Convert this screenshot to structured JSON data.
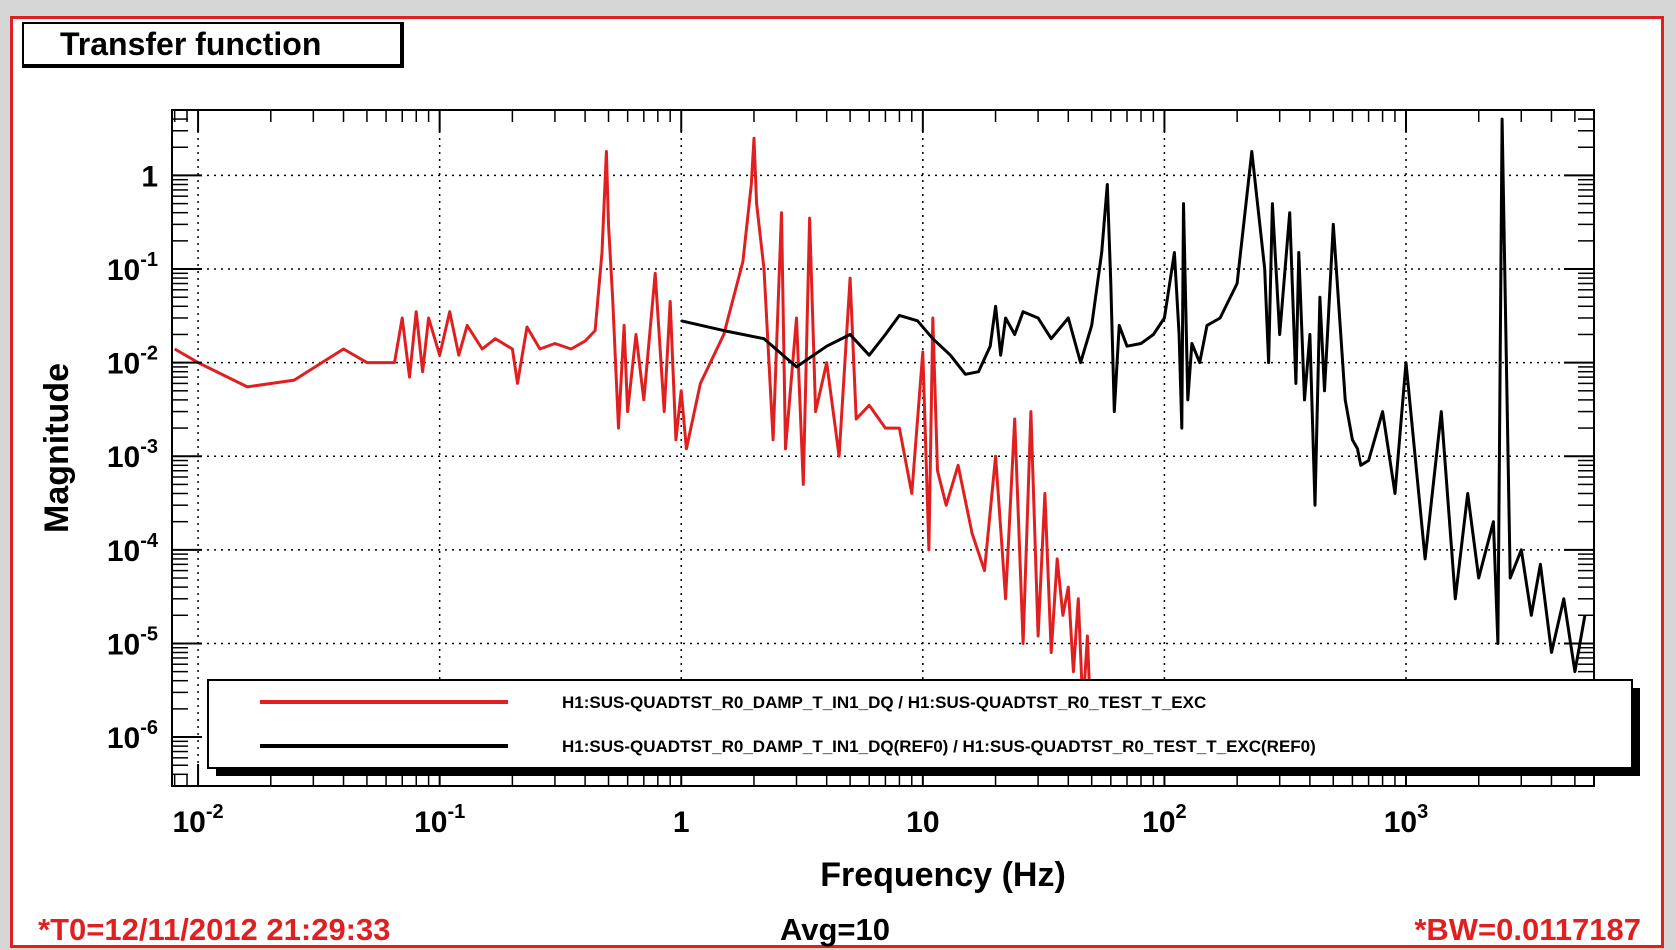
{
  "panel_title": "Transfer function",
  "footer": {
    "t0": "*T0=12/11/2012 21:29:33",
    "avg": "Avg=10",
    "bw": "*BW=0.0117187"
  },
  "colors": {
    "accent": "#e02020",
    "series_live": "#e02020",
    "series_ref": "#000000"
  },
  "chart_data": {
    "type": "line",
    "title": "Transfer function",
    "xlabel": "Frequency (Hz)",
    "ylabel": "Magnitude",
    "xscale": "log",
    "yscale": "log",
    "xlim": [
      0.0078,
      6000
    ],
    "ylim": [
      3e-07,
      5
    ],
    "grid": true,
    "legend": "bottom",
    "x_ticks": [
      {
        "base": "10",
        "exp": "-2",
        "value": 0.01
      },
      {
        "base": "10",
        "exp": "-1",
        "value": 0.1
      },
      {
        "base": "1",
        "exp": "",
        "value": 1
      },
      {
        "base": "10",
        "exp": "",
        "value": 10
      },
      {
        "base": "10",
        "exp": "2",
        "value": 100
      },
      {
        "base": "10",
        "exp": "3",
        "value": 1000
      }
    ],
    "y_ticks": [
      {
        "base": "1",
        "exp": "",
        "value": 1
      },
      {
        "base": "10",
        "exp": "-1",
        "value": 0.1
      },
      {
        "base": "10",
        "exp": "-2",
        "value": 0.01
      },
      {
        "base": "10",
        "exp": "-3",
        "value": 0.001
      },
      {
        "base": "10",
        "exp": "-4",
        "value": 0.0001
      },
      {
        "base": "10",
        "exp": "-5",
        "value": 1e-05
      },
      {
        "base": "10",
        "exp": "-6",
        "value": 1e-06
      }
    ],
    "series": [
      {
        "name": "H1:SUS-QUADTST_R0_DAMP_T_IN1_DQ / H1:SUS-QUADTST_R0_TEST_T_EXC",
        "color": "#e02020",
        "x": [
          0.008,
          0.01,
          0.016,
          0.025,
          0.04,
          0.05,
          0.065,
          0.07,
          0.075,
          0.08,
          0.085,
          0.09,
          0.1,
          0.11,
          0.12,
          0.13,
          0.15,
          0.17,
          0.2,
          0.21,
          0.23,
          0.26,
          0.3,
          0.35,
          0.4,
          0.44,
          0.47,
          0.49,
          0.5,
          0.52,
          0.55,
          0.58,
          0.6,
          0.65,
          0.7,
          0.78,
          0.85,
          0.9,
          0.95,
          1.0,
          1.05,
          1.2,
          1.5,
          1.8,
          1.95,
          2.0,
          2.05,
          2.2,
          2.4,
          2.6,
          2.7,
          3.0,
          3.2,
          3.4,
          3.6,
          4.0,
          4.5,
          5.0,
          5.3,
          6.0,
          7.0,
          8.0,
          9.0,
          10.0,
          10.6,
          11.0,
          11.5,
          12.5,
          14.0,
          16.0,
          18.0,
          20.0,
          22.0,
          24.0,
          26.0,
          28.0,
          30.0,
          32.0,
          34.0,
          36.0,
          38.0,
          40.0,
          42.0,
          44.0,
          46.0,
          48.0,
          50.0,
          52.0
        ],
        "y": [
          0.014,
          0.01,
          0.0055,
          0.0065,
          0.014,
          0.01,
          0.01,
          0.03,
          0.007,
          0.035,
          0.008,
          0.03,
          0.012,
          0.035,
          0.012,
          0.025,
          0.014,
          0.018,
          0.014,
          0.006,
          0.024,
          0.014,
          0.016,
          0.014,
          0.017,
          0.022,
          0.15,
          1.8,
          0.3,
          0.05,
          0.002,
          0.025,
          0.003,
          0.02,
          0.004,
          0.09,
          0.003,
          0.045,
          0.0015,
          0.005,
          0.0012,
          0.006,
          0.02,
          0.12,
          0.8,
          2.5,
          0.5,
          0.1,
          0.0015,
          0.4,
          0.0012,
          0.03,
          0.0005,
          0.35,
          0.003,
          0.01,
          0.001,
          0.08,
          0.0025,
          0.0035,
          0.002,
          0.002,
          0.0004,
          0.013,
          0.0001,
          0.03,
          0.0007,
          0.0003,
          0.0008,
          0.00015,
          6e-05,
          0.001,
          3e-05,
          0.0025,
          1e-05,
          0.003,
          1.2e-05,
          0.0004,
          8e-06,
          8e-05,
          2e-05,
          4e-05,
          5e-06,
          3e-05,
          2e-06,
          1.2e-05,
          8e-07,
          5e-07
        ]
      },
      {
        "name": "H1:SUS-QUADTST_R0_DAMP_T_IN1_DQ(REF0) / H1:SUS-QUADTST_R0_TEST_T_EXC(REF0)",
        "color": "#000000",
        "x": [
          1.0,
          1.5,
          2.2,
          3.0,
          4.0,
          5.0,
          6.0,
          7.0,
          8.0,
          9.5,
          11.0,
          13.0,
          15.0,
          17.0,
          19.0,
          20.0,
          21.0,
          22.0,
          24.0,
          26.0,
          30.0,
          34.0,
          40.0,
          45.0,
          50.0,
          55.0,
          58.0,
          60.0,
          62.0,
          65.0,
          70.0,
          80.0,
          90.0,
          100.0,
          110.0,
          115.0,
          118.0,
          120.0,
          125.0,
          130.0,
          140.0,
          150.0,
          170.0,
          200.0,
          230.0,
          260.0,
          270.0,
          280.0,
          300.0,
          330.0,
          350.0,
          360.0,
          380.0,
          400.0,
          420.0,
          440.0,
          460.0,
          500.0,
          560.0,
          600.0,
          630.0,
          650.0,
          700.0,
          800.0,
          900.0,
          1000.0,
          1200.0,
          1400.0,
          1600.0,
          1800.0,
          2000.0,
          2300.0,
          2400.0,
          2500.0,
          2700.0,
          3000.0,
          3300.0,
          3600.0,
          4000.0,
          4500.0,
          5000.0,
          5500.0
        ],
        "y": [
          0.028,
          0.022,
          0.018,
          0.009,
          0.015,
          0.02,
          0.012,
          0.02,
          0.032,
          0.028,
          0.018,
          0.012,
          0.0075,
          0.008,
          0.015,
          0.04,
          0.012,
          0.03,
          0.02,
          0.035,
          0.03,
          0.018,
          0.03,
          0.01,
          0.025,
          0.15,
          0.8,
          0.07,
          0.003,
          0.025,
          0.015,
          0.016,
          0.02,
          0.03,
          0.15,
          0.02,
          0.002,
          0.5,
          0.004,
          0.016,
          0.01,
          0.025,
          0.03,
          0.07,
          1.8,
          0.1,
          0.01,
          0.5,
          0.02,
          0.4,
          0.006,
          0.15,
          0.004,
          0.02,
          0.0003,
          0.05,
          0.005,
          0.3,
          0.004,
          0.0015,
          0.0012,
          0.0008,
          0.0009,
          0.003,
          0.0004,
          0.01,
          8e-05,
          0.003,
          3e-05,
          0.0004,
          5e-05,
          0.0002,
          1e-05,
          4,
          5e-05,
          0.0001,
          2e-05,
          7e-05,
          8e-06,
          3e-05,
          5e-06,
          2e-05
        ]
      }
    ]
  }
}
